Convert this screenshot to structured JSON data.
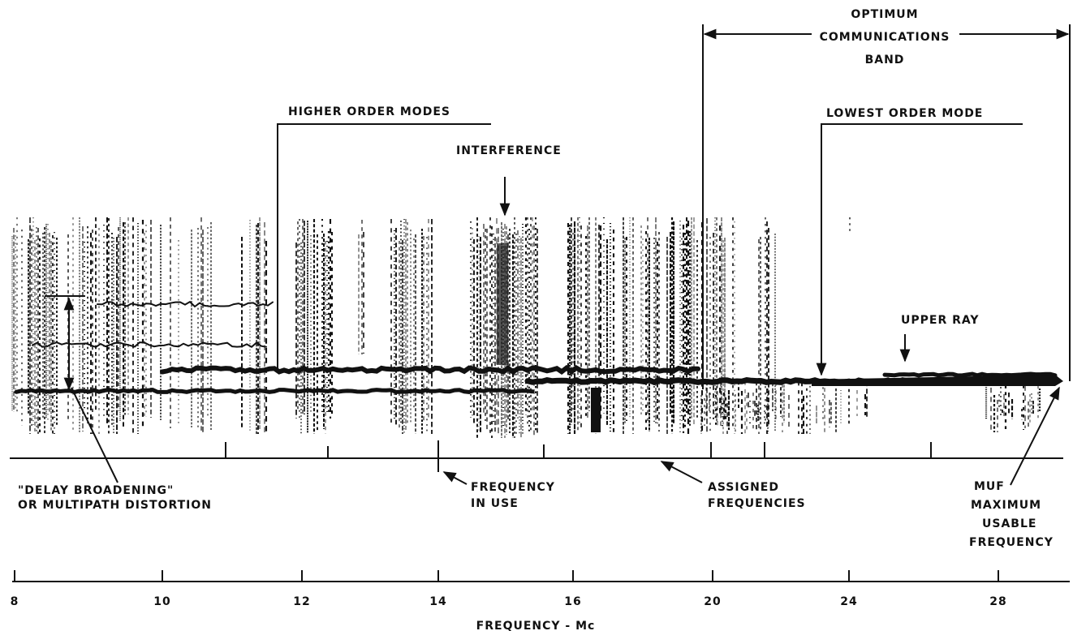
{
  "annotations": {
    "optimum_band": [
      "OPTIMUM",
      "COMMUNICATIONS",
      "BAND"
    ],
    "higher_order_modes": "HIGHER ORDER MODES",
    "lowest_order_mode": "LOWEST ORDER MODE",
    "interference": "INTERFERENCE",
    "upper_ray": "UPPER RAY",
    "delay_broadening": [
      "\"DELAY BROADENING\"",
      "OR MULTIPATH DISTORTION"
    ],
    "frequency_in_use": [
      "FREQUENCY",
      "IN USE"
    ],
    "assigned_frequencies": [
      "ASSIGNED",
      "FREQUENCIES"
    ],
    "muf": [
      "MUF",
      "MAXIMUM",
      "USABLE",
      "FREQUENCY"
    ]
  },
  "axis": {
    "ticks": [
      8,
      10,
      12,
      14,
      16,
      20,
      24,
      28
    ],
    "label": "FREQUENCY - Mc"
  }
}
